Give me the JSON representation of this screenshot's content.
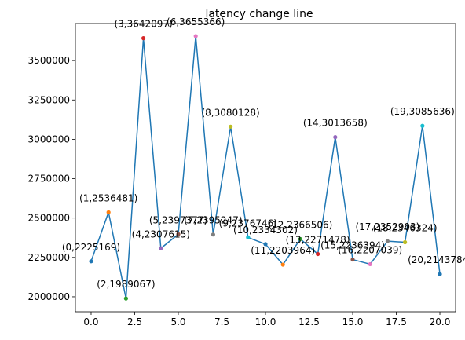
{
  "chart_data": {
    "type": "line",
    "title": "latency change line",
    "xlabel": "",
    "ylabel": "",
    "xlim": [
      -0.9,
      20.9
    ],
    "ylim": [
      1905000,
      3735000
    ],
    "xticks": [
      0.0,
      2.5,
      5.0,
      7.5,
      10.0,
      12.5,
      15.0,
      17.5,
      20.0
    ],
    "xtick_labels": [
      "0.0",
      "2.5",
      "5.0",
      "7.5",
      "10.0",
      "12.5",
      "15.0",
      "17.5",
      "20.0"
    ],
    "yticks": [
      2000000,
      2250000,
      2500000,
      2750000,
      3000000,
      3250000,
      3500000
    ],
    "ytick_labels": [
      "2000000",
      "2250000",
      "2500000",
      "2750000",
      "3000000",
      "3250000",
      "3500000"
    ],
    "grid": false,
    "line_color": "#1f77b4",
    "x": [
      0,
      1,
      2,
      3,
      4,
      5,
      6,
      7,
      8,
      9,
      10,
      11,
      12,
      13,
      14,
      15,
      16,
      17,
      18,
      19,
      20
    ],
    "values": [
      2225169,
      2536481,
      1989067,
      3642097,
      2307615,
      2397377,
      3655366,
      2395247,
      3080128,
      2376746,
      2334302,
      2203964,
      2366506,
      2271478,
      3013658,
      2236394,
      2207039,
      2352903,
      2346324,
      3085636,
      2143784
    ],
    "point_labels": [
      "(0,2225169)",
      "(1,2536481)",
      "(2,1989067)",
      "(3,3642097)",
      "(4,2307615)",
      "(5,2397377)",
      "(6,3655366)",
      "(7,2395247)",
      "(8,3080128)",
      "(9,2376746)",
      "(10,2334302)",
      "(11,2203964)",
      "(12,2366506)",
      "(13,2271478)",
      "(14,3013658)",
      "(15,2236394)",
      "(16,2207039)",
      "(17,2352903)",
      "(18,2346324)",
      "(19,3085636)",
      "(20,2143784)"
    ],
    "marker_colors": [
      "#1f77b4",
      "#ff7f0e",
      "#2ca02c",
      "#d62728",
      "#9467bd",
      "#8c564b",
      "#e377c2",
      "#7f7f7f",
      "#bcbd22",
      "#17becf",
      "#1f77b4",
      "#ff7f0e",
      "#2ca02c",
      "#d62728",
      "#9467bd",
      "#8c564b",
      "#e377c2",
      "#7f7f7f",
      "#bcbd22",
      "#17becf",
      "#1f77b4"
    ]
  }
}
